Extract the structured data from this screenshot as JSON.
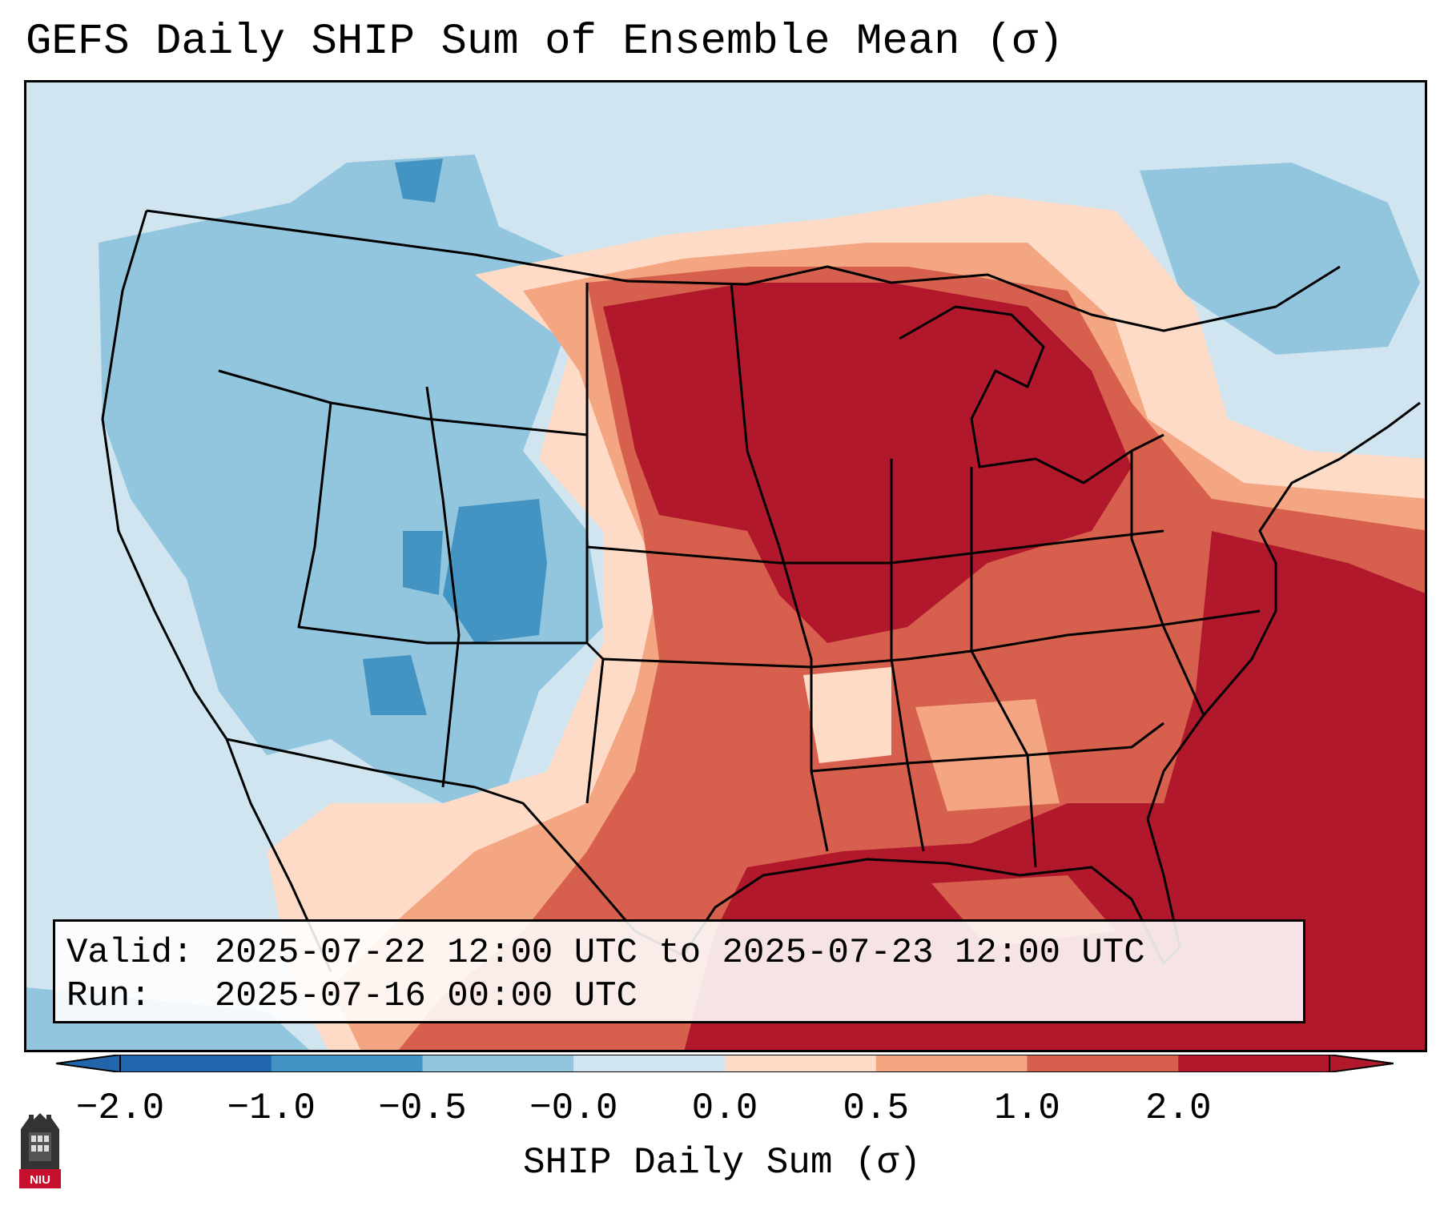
{
  "title": "GEFS Daily SHIP Sum of Ensemble Mean (σ)",
  "info": {
    "valid_line": "Valid: 2025-07-22 12:00 UTC to 2025-07-23 12:00 UTC",
    "run_line": "Run:   2025-07-16 00:00 UTC"
  },
  "colorbar": {
    "label": "SHIP Daily Sum (σ)",
    "ticks": [
      "−2.0",
      "−1.0",
      "−0.5",
      "−0.0",
      "0.0",
      "0.5",
      "1.0",
      "2.0"
    ],
    "colors": [
      "#2166ac",
      "#4393c3",
      "#92c5de",
      "#d1e5f0",
      "#fddbc7",
      "#f4a582",
      "#d6604d",
      "#b2182b"
    ],
    "extend": "both"
  },
  "map": {
    "region": "Contiguous United States, Gulf of Mexico, northern Mexico",
    "pattern": "Below normal (blue) over the western US; above normal (red) over the central/eastern US, Gulf of Mexico and western Atlantic"
  },
  "logo": {
    "text": "NIU"
  }
}
